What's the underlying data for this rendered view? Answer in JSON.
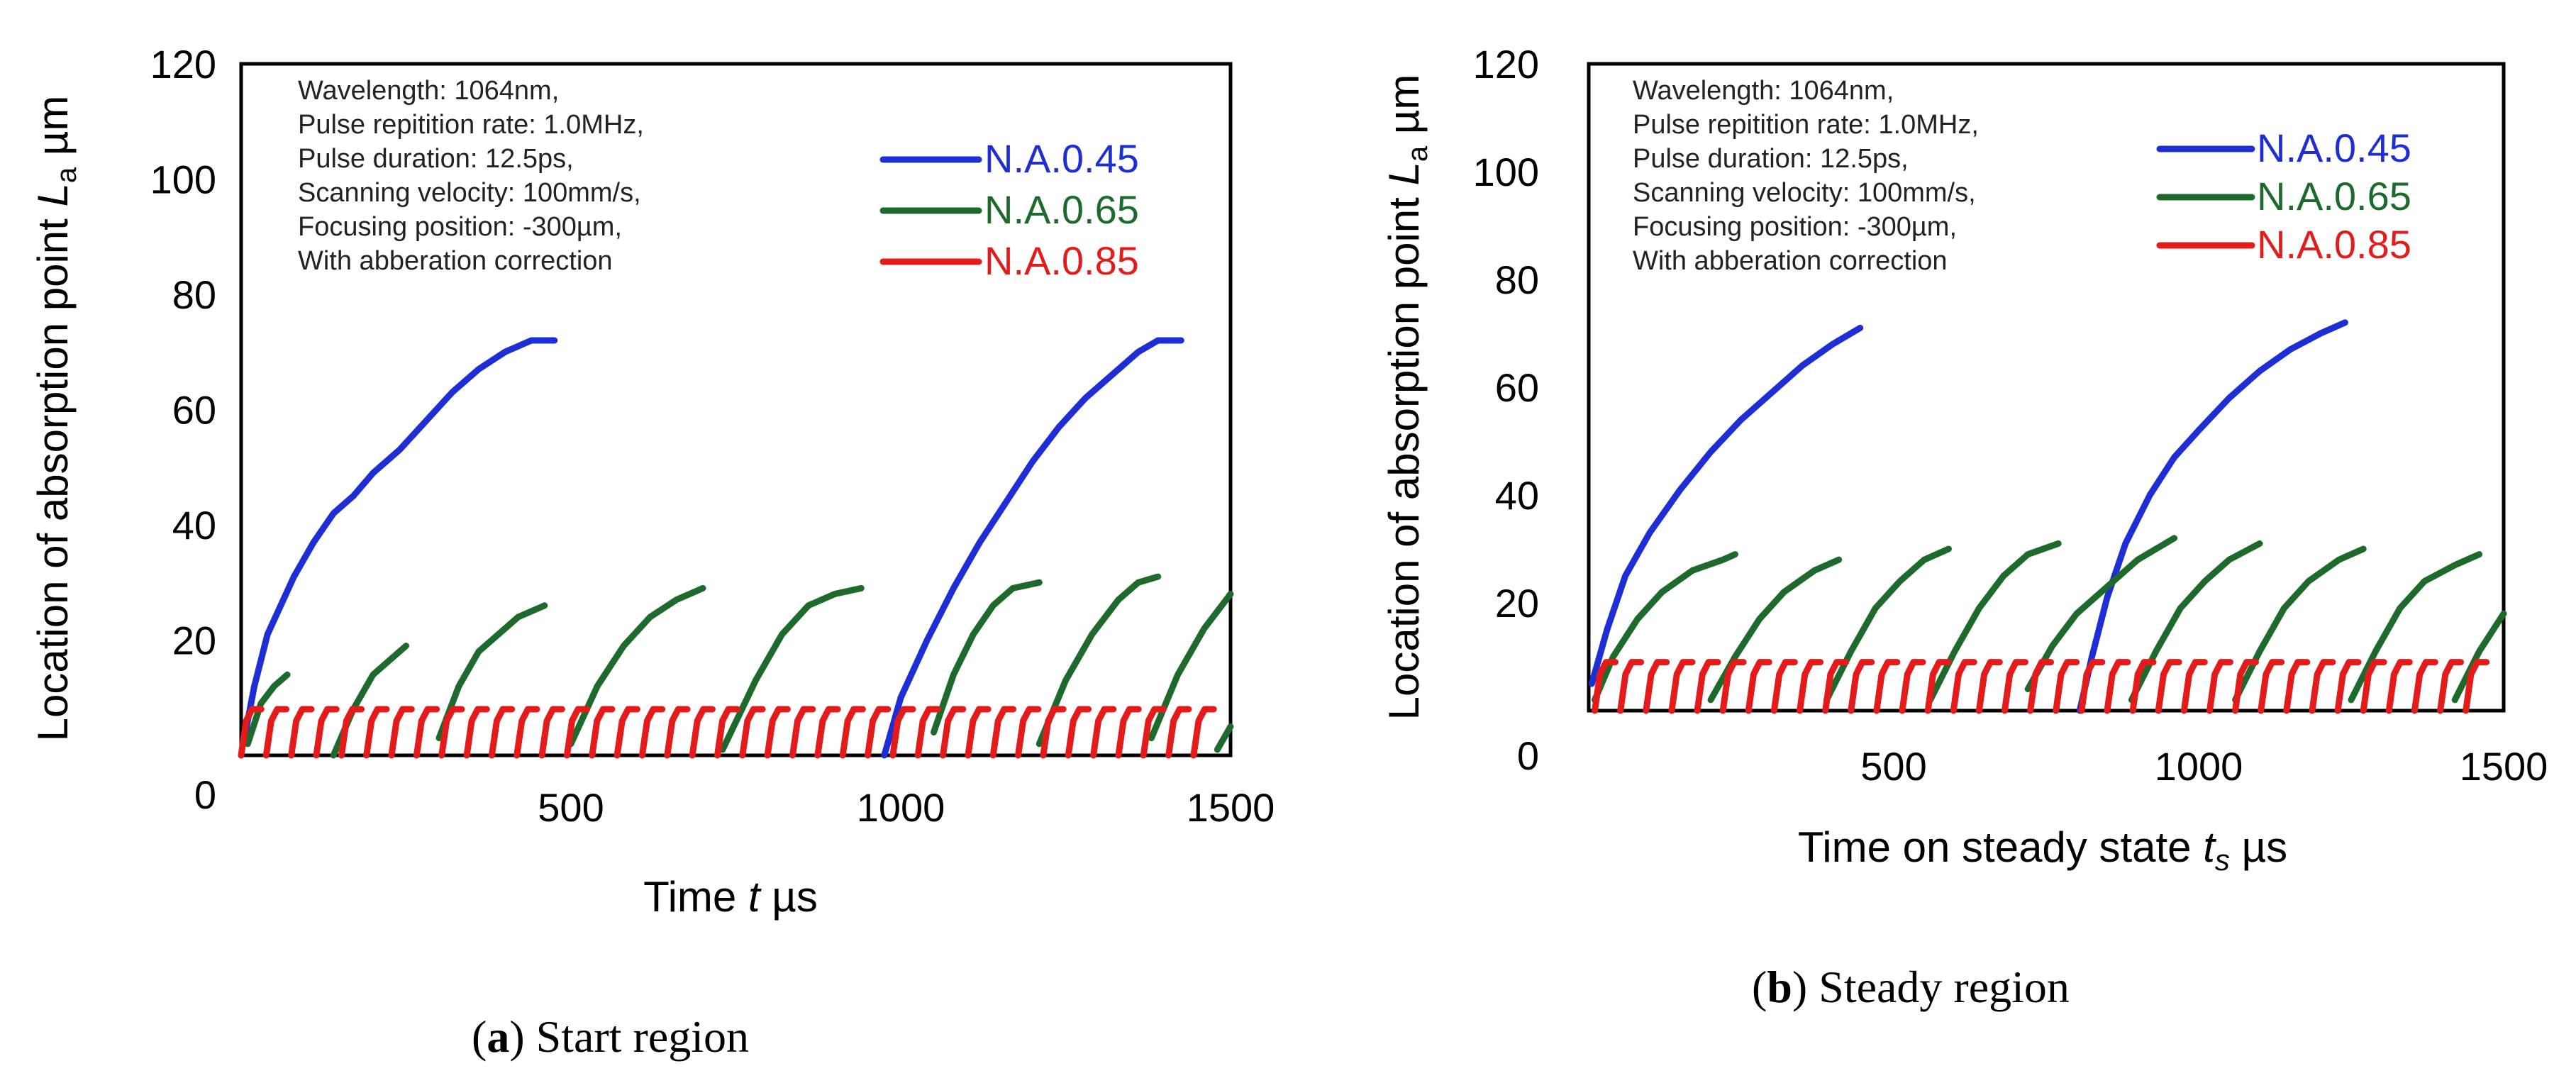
{
  "figure": {
    "panel_a_caption": {
      "letter": "a",
      "text": "Start region"
    },
    "panel_b_caption": {
      "letter": "b",
      "text": "Steady region"
    }
  },
  "colors": {
    "blue": "#1d2fd4",
    "green": "#1e6a2c",
    "red": "#e31b1b"
  },
  "chart_data": [
    {
      "type": "line",
      "panel": "a",
      "xlabel_prefix": "Time ",
      "xlabel_var": "t",
      "xlabel_unit": " µs",
      "ylabel_prefix": "Location of absorption point ",
      "ylabel_var": "L",
      "ylabel_sub": "a",
      "ylabel_unit": " µm",
      "xlim": [
        0,
        1500
      ],
      "ylim": [
        0,
        120
      ],
      "xticks": [
        0,
        500,
        1000,
        1500
      ],
      "yticks": [
        0,
        20,
        40,
        60,
        80,
        100,
        120
      ],
      "annotation": [
        "Wavelength: 1064nm,",
        "Pulse repitition rate: 1.0MHz,",
        "Pulse duration: 12.5ps,",
        "Scanning velocity: 100mm/s,",
        "Focusing position: -300µm,",
        "With abberation correction"
      ],
      "legend": [
        {
          "label": "N.A.0.45",
          "color": "#1d2fd4"
        },
        {
          "label": "N.A.0.65",
          "color": "#1e6a2c"
        },
        {
          "label": "N.A.0.85",
          "color": "#e31b1b"
        }
      ],
      "series": [
        {
          "name": "N.A.0.45",
          "color": "#1d2fd4",
          "segments": [
            [
              [
                5,
                3
              ],
              [
                20,
                12
              ],
              [
                40,
                21
              ],
              [
                60,
                26
              ],
              [
                80,
                31
              ],
              [
                110,
                37
              ],
              [
                140,
                42
              ],
              [
                170,
                45
              ],
              [
                200,
                49
              ],
              [
                240,
                53
              ],
              [
                280,
                58
              ],
              [
                320,
                63
              ],
              [
                360,
                67
              ],
              [
                400,
                70
              ],
              [
                440,
                72
              ],
              [
                475,
                72
              ]
            ],
            [
              [
                975,
                0
              ],
              [
                1000,
                10
              ],
              [
                1040,
                20
              ],
              [
                1080,
                29
              ],
              [
                1120,
                37
              ],
              [
                1160,
                44
              ],
              [
                1200,
                51
              ],
              [
                1240,
                57
              ],
              [
                1280,
                62
              ],
              [
                1320,
                66
              ],
              [
                1360,
                70
              ],
              [
                1390,
                72
              ],
              [
                1425,
                72
              ]
            ]
          ]
        },
        {
          "name": "N.A.0.65",
          "color": "#1e6a2c",
          "segments": [
            [
              [
                10,
                2
              ],
              [
                30,
                9
              ],
              [
                50,
                12
              ],
              [
                70,
                14
              ]
            ],
            [
              [
                140,
                0
              ],
              [
                170,
                8
              ],
              [
                200,
                14
              ],
              [
                230,
                17
              ],
              [
                250,
                19
              ]
            ],
            [
              [
                300,
                3
              ],
              [
                330,
                12
              ],
              [
                360,
                18
              ],
              [
                390,
                21
              ],
              [
                420,
                24
              ],
              [
                460,
                26
              ]
            ],
            [
              [
                500,
                2
              ],
              [
                540,
                12
              ],
              [
                580,
                19
              ],
              [
                620,
                24
              ],
              [
                660,
                27
              ],
              [
                700,
                29
              ]
            ],
            [
              [
                730,
                1
              ],
              [
                780,
                13
              ],
              [
                820,
                21
              ],
              [
                860,
                26
              ],
              [
                900,
                28
              ],
              [
                940,
                29
              ]
            ],
            [
              [
                1050,
                4
              ],
              [
                1080,
                14
              ],
              [
                1110,
                21
              ],
              [
                1140,
                26
              ],
              [
                1170,
                29
              ],
              [
                1210,
                30
              ]
            ],
            [
              [
                1210,
                2
              ],
              [
                1250,
                13
              ],
              [
                1290,
                21
              ],
              [
                1330,
                27
              ],
              [
                1360,
                30
              ],
              [
                1390,
                31
              ]
            ],
            [
              [
                1380,
                3
              ],
              [
                1420,
                14
              ],
              [
                1460,
                22
              ],
              [
                1500,
                28
              ]
            ],
            [
              [
                1480,
                1
              ],
              [
                1500,
                5
              ]
            ]
          ]
        },
        {
          "name": "N.A.0.85",
          "color": "#e31b1b",
          "repeat": {
            "x_start": 0,
            "x_end": 1500,
            "period": 38,
            "min": 0,
            "max": 8
          }
        }
      ]
    },
    {
      "type": "line",
      "panel": "b",
      "xlabel_prefix": "Time on steady state ",
      "xlabel_var": "t",
      "xlabel_sub": "s",
      "xlabel_unit": " µs",
      "ylabel_prefix": "Location of absorption point ",
      "ylabel_var": "L",
      "ylabel_sub": "a",
      "ylabel_unit": " µm",
      "xlim": [
        0,
        1500
      ],
      "ylim": [
        0,
        120
      ],
      "xticks": [
        0,
        500,
        1000,
        1500
      ],
      "yticks": [
        0,
        20,
        40,
        60,
        80,
        100,
        120
      ],
      "annotation": [
        "Wavelength: 1064nm,",
        "Pulse repitition rate: 1.0MHz,",
        "Pulse duration: 12.5ps,",
        "Scanning velocity: 100mm/s,",
        "Focusing position: -300µm,",
        "With abberation correction"
      ],
      "legend": [
        {
          "label": "N.A.0.45",
          "color": "#1d2fd4"
        },
        {
          "label": "N.A.0.65",
          "color": "#1e6a2c"
        },
        {
          "label": "N.A.0.85",
          "color": "#e31b1b"
        }
      ],
      "series": [
        {
          "name": "N.A.0.45",
          "color": "#1d2fd4",
          "segments": [
            [
              [
                5,
                5
              ],
              [
                30,
                15
              ],
              [
                60,
                25
              ],
              [
                100,
                33
              ],
              [
                150,
                41
              ],
              [
                200,
                48
              ],
              [
                250,
                54
              ],
              [
                300,
                59
              ],
              [
                350,
                64
              ],
              [
                400,
                68
              ],
              [
                445,
                71
              ]
            ],
            [
              [
                805,
                0
              ],
              [
                825,
                10
              ],
              [
                850,
                21
              ],
              [
                880,
                31
              ],
              [
                920,
                40
              ],
              [
                960,
                47
              ],
              [
                1000,
                52
              ],
              [
                1050,
                58
              ],
              [
                1100,
                63
              ],
              [
                1150,
                67
              ],
              [
                1200,
                70
              ],
              [
                1240,
                72
              ]
            ]
          ]
        },
        {
          "name": "N.A.0.65",
          "color": "#1e6a2c",
          "segments": [
            [
              [
                10,
                2
              ],
              [
                40,
                10
              ],
              [
                80,
                17
              ],
              [
                120,
                22
              ],
              [
                170,
                26
              ],
              [
                220,
                28
              ],
              [
                240,
                29
              ]
            ],
            [
              [
                200,
                2
              ],
              [
                240,
                10
              ],
              [
                280,
                17
              ],
              [
                320,
                22
              ],
              [
                370,
                26
              ],
              [
                410,
                28
              ]
            ],
            [
              [
                390,
                2
              ],
              [
                430,
                11
              ],
              [
                470,
                19
              ],
              [
                510,
                24
              ],
              [
                550,
                28
              ],
              [
                590,
                30
              ]
            ],
            [
              [
                560,
                2
              ],
              [
                600,
                11
              ],
              [
                640,
                19
              ],
              [
                680,
                25
              ],
              [
                720,
                29
              ],
              [
                770,
                31
              ]
            ],
            [
              [
                720,
                4
              ],
              [
                760,
                12
              ],
              [
                800,
                18
              ],
              [
                850,
                23
              ],
              [
                900,
                28
              ],
              [
                960,
                32
              ]
            ],
            [
              [
                890,
                2
              ],
              [
                930,
                11
              ],
              [
                970,
                19
              ],
              [
                1010,
                24
              ],
              [
                1050,
                28
              ],
              [
                1100,
                31
              ]
            ],
            [
              [
                1060,
                2
              ],
              [
                1100,
                11
              ],
              [
                1140,
                19
              ],
              [
                1180,
                24
              ],
              [
                1230,
                28
              ],
              [
                1270,
                30
              ]
            ],
            [
              [
                1250,
                2
              ],
              [
                1290,
                11
              ],
              [
                1330,
                19
              ],
              [
                1370,
                24
              ],
              [
                1420,
                27
              ],
              [
                1460,
                29
              ]
            ],
            [
              [
                1420,
                2
              ],
              [
                1460,
                11
              ],
              [
                1500,
                18
              ]
            ]
          ]
        },
        {
          "name": "N.A.0.85",
          "color": "#e31b1b",
          "repeat": {
            "x_start": 10,
            "x_end": 1500,
            "period": 42,
            "min": 0,
            "max": 9
          }
        }
      ]
    }
  ]
}
